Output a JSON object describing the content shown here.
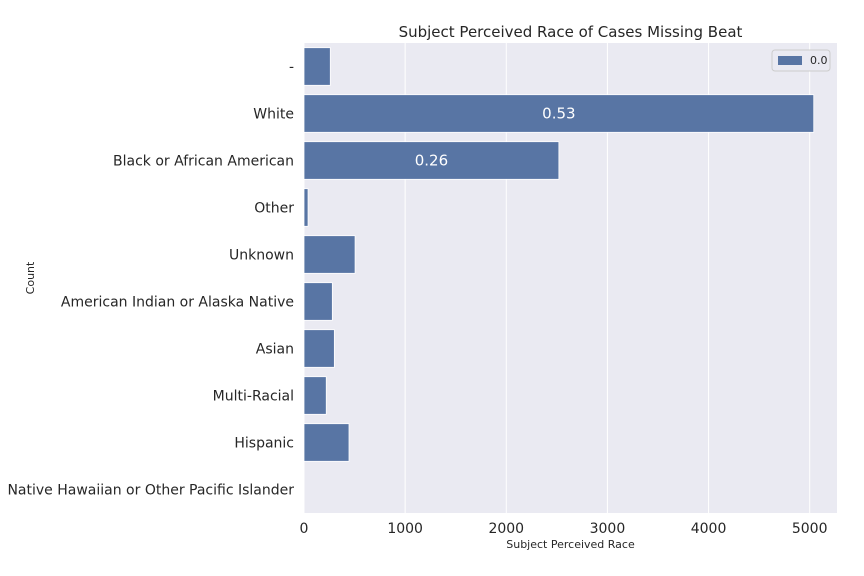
{
  "chart_data": {
    "type": "bar",
    "orientation": "horizontal",
    "title": "Subject Perceived Race of Cases Missing Beat",
    "xlabel": "Subject Perceived Race",
    "ylabel": "Count",
    "categories": [
      "-",
      "White",
      "Black or African American",
      "Other",
      "Unknown",
      "American Indian or Alaska Native",
      "Asian",
      "Multi-Racial",
      "Hispanic",
      "Native Hawaiian or Other Pacific Islander"
    ],
    "series": [
      {
        "name": "0.0",
        "values": [
          260,
          5040,
          2520,
          40,
          505,
          280,
          300,
          220,
          445,
          0
        ],
        "color": "#5875a4"
      }
    ],
    "bar_labels": [
      "",
      "0.53",
      "0.26",
      "",
      "",
      "",
      "",
      "",
      "",
      ""
    ],
    "xlim": [
      0,
      5270
    ],
    "xticks": [
      0,
      1000,
      2000,
      3000,
      4000,
      5000
    ],
    "xtick_labels": [
      "0",
      "1000",
      "2000",
      "3000",
      "4000",
      "5000"
    ],
    "grid": true,
    "legend_position": "top-right",
    "background": "#eaeaf2"
  }
}
